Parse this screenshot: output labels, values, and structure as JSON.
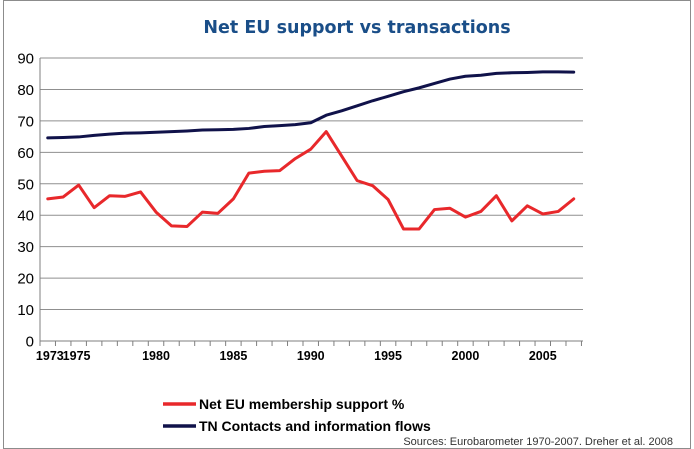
{
  "chart_data": {
    "type": "line",
    "title": "Net EU support vs transactions",
    "xlabel": "",
    "ylabel": "",
    "xlim": [
      1973,
      2007
    ],
    "ylim": [
      0,
      90
    ],
    "yticks": [
      0,
      10,
      20,
      30,
      40,
      50,
      60,
      70,
      80,
      90
    ],
    "xtick_labels": [
      {
        "x": 1973,
        "label": "1973"
      },
      {
        "x": 1975,
        "label": "1975"
      },
      {
        "x": 1980,
        "label": "1980"
      },
      {
        "x": 1985,
        "label": "1985"
      },
      {
        "x": 1990,
        "label": "1990"
      },
      {
        "x": 1995,
        "label": "1995"
      },
      {
        "x": 2000,
        "label": "2000"
      },
      {
        "x": 2005,
        "label": "2005"
      }
    ],
    "grid": "horizontal",
    "legend_position": "bottom",
    "x": [
      1973,
      1974,
      1975,
      1976,
      1977,
      1978,
      1979,
      1980,
      1981,
      1982,
      1983,
      1984,
      1985,
      1986,
      1987,
      1988,
      1989,
      1990,
      1991,
      1992,
      1993,
      1994,
      1995,
      1996,
      1997,
      1998,
      1999,
      2000,
      2001,
      2002,
      2003,
      2004,
      2005,
      2006,
      2007
    ],
    "series": [
      {
        "name": "Net EU membership support %",
        "color": "#e8282b",
        "values": [
          45.2,
          45.8,
          49.6,
          42.4,
          46.2,
          46.0,
          47.4,
          41.0,
          36.6,
          36.4,
          41.0,
          40.6,
          45.2,
          53.4,
          54.0,
          54.2,
          58.0,
          61.0,
          66.6,
          58.8,
          51.0,
          49.4,
          45.0,
          35.6,
          35.6,
          41.8,
          42.2,
          39.4,
          41.2,
          46.2,
          38.2,
          43.0,
          40.4,
          41.2,
          45.2
        ]
      },
      {
        "name": "TN Contacts and information flows",
        "color": "#10124a",
        "values": [
          64.6,
          64.7,
          64.9,
          65.4,
          65.8,
          66.1,
          66.2,
          66.4,
          66.6,
          66.8,
          67.1,
          67.2,
          67.3,
          67.6,
          68.2,
          68.5,
          68.8,
          69.4,
          71.8,
          73.2,
          74.8,
          76.4,
          77.8,
          79.3,
          80.5,
          81.9,
          83.3,
          84.2,
          84.5,
          85.1,
          85.3,
          85.4,
          85.6,
          85.6,
          85.5
        ]
      }
    ],
    "source": "Sources: Eurobarometer 1970-2007. Dreher et al. 2008"
  }
}
